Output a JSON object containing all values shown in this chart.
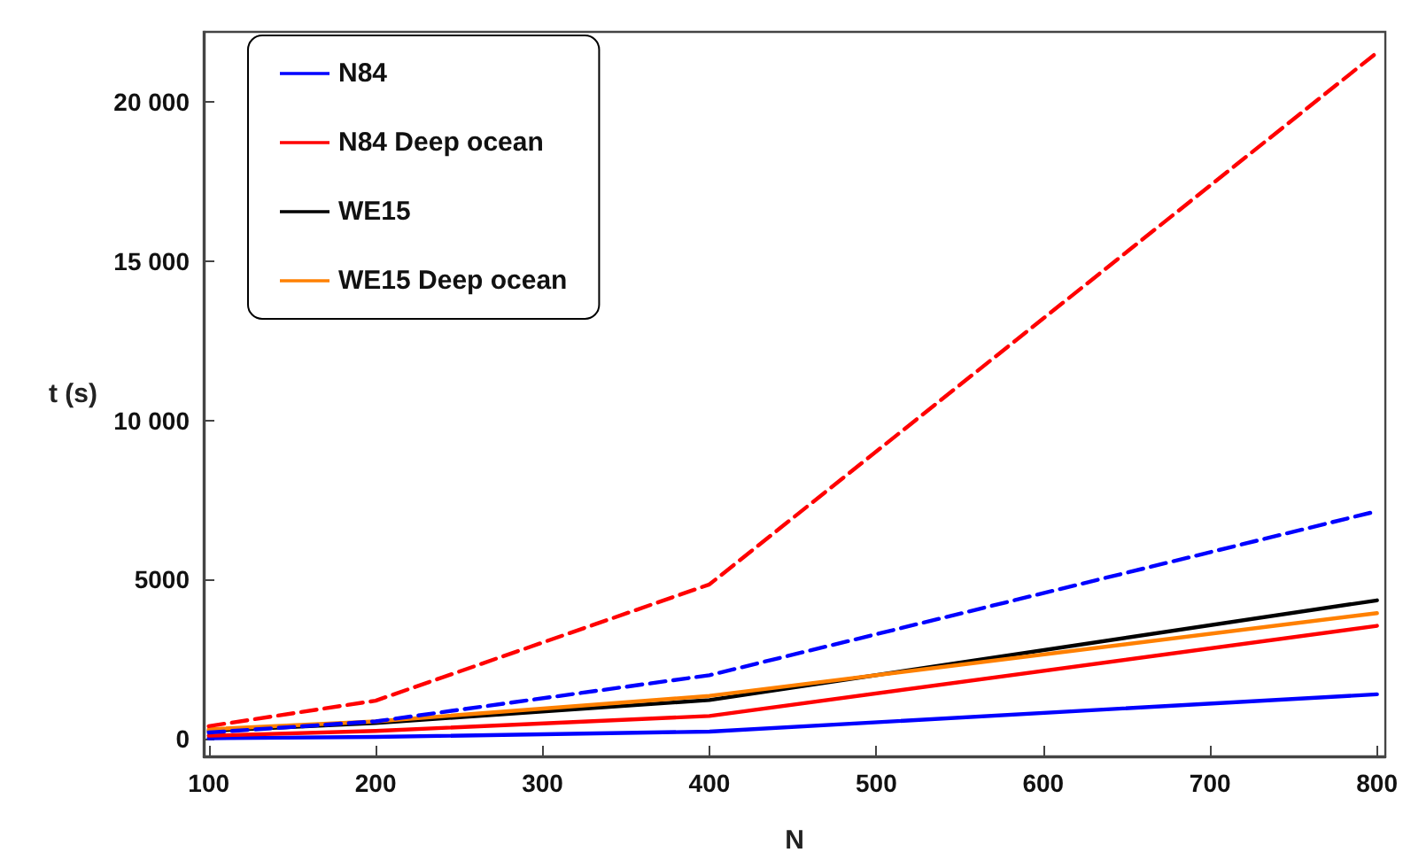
{
  "chart_data": {
    "type": "line",
    "xlabel": "N",
    "ylabel": "t (s)",
    "x": [
      100,
      200,
      400,
      800
    ],
    "series": [
      {
        "name": "N84",
        "color": "#0000ff",
        "values": [
          20,
          60,
          230,
          1400
        ]
      },
      {
        "name": "N84 Deep ocean",
        "color": "#ff0000",
        "values": [
          100,
          250,
          720,
          3550
        ]
      },
      {
        "name": "WE15",
        "color": "#000000",
        "values": [
          250,
          500,
          1220,
          4350
        ]
      },
      {
        "name": "WE15 Deep ocean",
        "color": "#ff8000",
        "values": [
          300,
          550,
          1350,
          3950
        ]
      },
      {
        "color": "#0000ff",
        "line_style": "dashed",
        "values": [
          200,
          550,
          2000,
          7150
        ]
      },
      {
        "color": "#ff0000",
        "line_style": "dashed",
        "values": [
          400,
          1200,
          4850,
          21550
        ]
      }
    ],
    "xlim": [
      97,
      805
    ],
    "xticks": [
      100,
      200,
      300,
      400,
      500,
      600,
      700,
      800
    ],
    "ylim": [
      -550,
      22200
    ],
    "yticks": [
      0,
      5000,
      {
        "value": 10000,
        "label": "10 000"
      },
      {
        "value": 15000,
        "label": "15 000"
      },
      {
        "value": 20000,
        "label": "20 000"
      }
    ],
    "grid": false,
    "legend": "top left",
    "marker": "none",
    "line_style": "solid"
  }
}
